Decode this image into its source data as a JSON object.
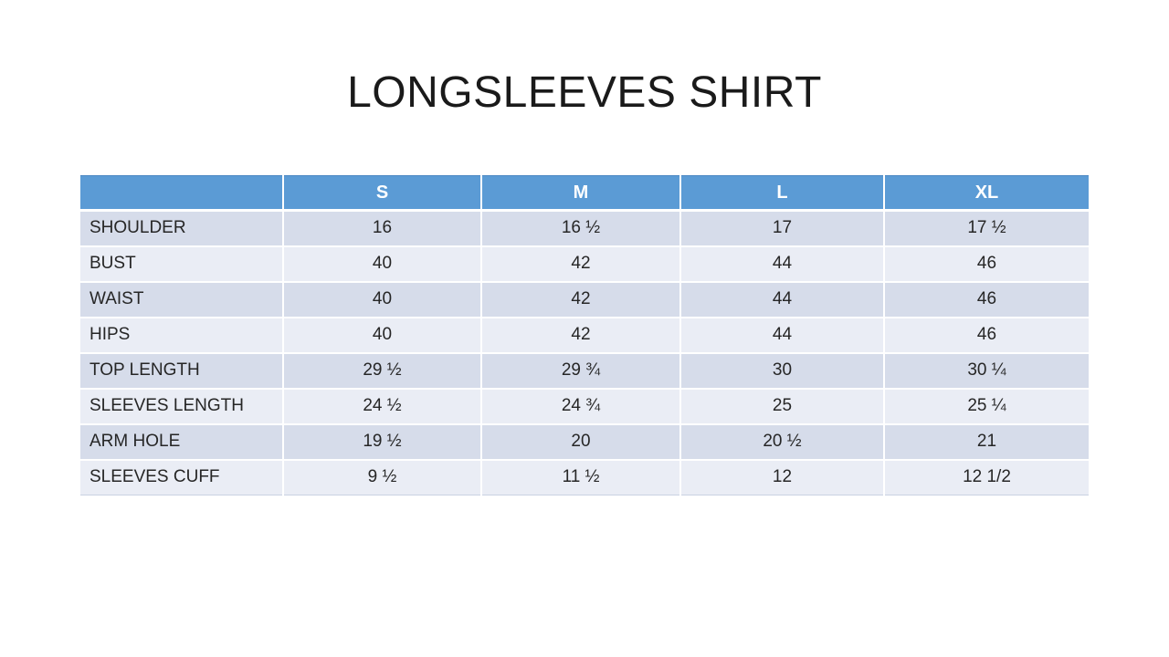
{
  "chart_data": {
    "type": "table",
    "title": "LONGSLEEVES SHIRT",
    "columns": [
      "",
      "S",
      "M",
      "L",
      "XL"
    ],
    "rows": [
      {
        "label": "SHOULDER",
        "values": [
          "16",
          "16 ½",
          "17",
          "17 ½"
        ]
      },
      {
        "label": "BUST",
        "values": [
          "40",
          "42",
          "44",
          "46"
        ]
      },
      {
        "label": "WAIST",
        "values": [
          "40",
          "42",
          "44",
          "46"
        ]
      },
      {
        "label": "HIPS",
        "values": [
          "40",
          "42",
          "44",
          "46"
        ]
      },
      {
        "label": "TOP LENGTH",
        "values": [
          "29 ½",
          "29 ¾",
          "30",
          "30 ¼"
        ]
      },
      {
        "label": "SLEEVES LENGTH",
        "values": [
          "24 ½",
          "24 ¾",
          "25",
          "25 ¼"
        ]
      },
      {
        "label": "ARM HOLE",
        "values": [
          "19 ½",
          "20",
          "20 ½",
          "21"
        ]
      },
      {
        "label": "SLEEVES CUFF",
        "values": [
          "9 ½",
          "11 ½",
          "12",
          "12 1/2"
        ]
      }
    ],
    "colors": {
      "header_bg": "#5b9bd5",
      "header_text": "#ffffff",
      "band_dark": "#d6dcea",
      "band_light": "#eaedf5",
      "body_text": "#262626"
    },
    "layout": {
      "banded_rows": true,
      "header_row": true,
      "grid": "white-separators"
    }
  }
}
